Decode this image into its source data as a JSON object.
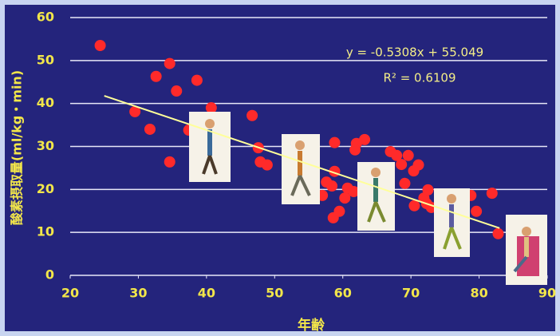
{
  "chart_data": {
    "type": "scatter",
    "x_label": "年齢",
    "y_label": "酸素摂取量(ml/kg・min)",
    "annotations": [
      "y = -0.5308x + 55.049",
      "R² = 0.6109"
    ],
    "series": [
      {
        "color": "#ff2a2a",
        "x": [
          24.4,
          32.6,
          34.6,
          35.6,
          38.6,
          29.5,
          31.7,
          34.6,
          37.4,
          40.7,
          46.7,
          47.6,
          47.9,
          48.9,
          58.8,
          58.8,
          58.4,
          57.6,
          57.0,
          58.6,
          59.5,
          60.3,
          60.7,
          62.0,
          63.2,
          61.8,
          61.6,
          67.0,
          67.9,
          68.6,
          69.1,
          69.6,
          70.4,
          71.1,
          70.5,
          71.9,
          72.5,
          73.0,
          72.3,
          78.8,
          79.6,
          81.9,
          82.8
        ],
        "values": [
          53.5,
          46.3,
          49.3,
          42.9,
          45.4,
          38.1,
          34.0,
          26.4,
          33.8,
          39.0,
          37.2,
          29.7,
          26.4,
          25.7,
          30.9,
          24.2,
          20.8,
          21.7,
          18.6,
          13.4,
          14.9,
          18.0,
          20.3,
          30.7,
          31.6,
          29.2,
          19.5,
          28.8,
          27.9,
          25.8,
          21.4,
          27.9,
          24.3,
          25.7,
          16.2,
          18.0,
          19.9,
          15.8,
          16.7,
          18.6,
          14.9,
          19.1,
          9.7
        ]
      }
    ],
    "trendline": {
      "color": "#ffff99",
      "x": [
        25,
        83
      ],
      "values": [
        41.78,
        10.99
      ]
    },
    "xlim": [
      20,
      90
    ],
    "xticks": [
      20,
      30,
      40,
      50,
      60,
      70,
      80,
      90
    ],
    "ylim": [
      0,
      60
    ],
    "yticks": [
      0,
      10,
      20,
      30,
      40,
      50,
      60
    ],
    "grid": true
  }
}
